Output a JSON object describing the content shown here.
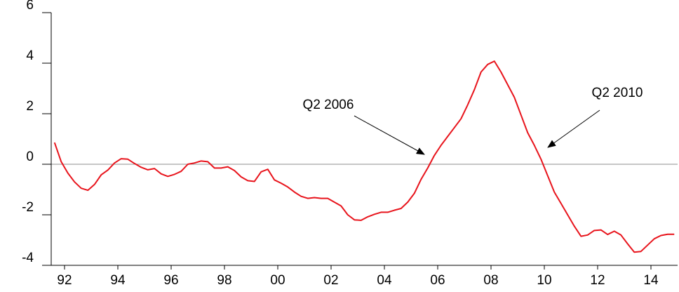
{
  "chart_data": {
    "type": "line",
    "annotations": [
      "Q2 2006",
      "Q2 2010"
    ],
    "x": [
      1992.125,
      1992.375,
      1992.625,
      1992.875,
      1993.125,
      1993.375,
      1993.625,
      1993.875,
      1994.125,
      1994.375,
      1994.625,
      1994.875,
      1995.125,
      1995.375,
      1995.625,
      1995.875,
      1996.125,
      1996.375,
      1996.625,
      1996.875,
      1997.125,
      1997.375,
      1997.625,
      1997.875,
      1998.125,
      1998.375,
      1998.625,
      1998.875,
      1999.125,
      1999.375,
      1999.625,
      1999.875,
      2000.125,
      2000.375,
      2000.625,
      2000.875,
      2001.125,
      2001.375,
      2001.625,
      2001.875,
      2002.125,
      2002.375,
      2002.625,
      2002.875,
      2003.125,
      2003.375,
      2003.625,
      2003.875,
      2004.125,
      2004.375,
      2004.625,
      2004.875,
      2005.125,
      2005.375,
      2005.625,
      2005.875,
      2006.125,
      2006.375,
      2006.625,
      2006.875,
      2007.125,
      2007.375,
      2007.625,
      2007.875,
      2008.125,
      2008.375,
      2008.625,
      2008.875,
      2009.125,
      2009.375,
      2009.625,
      2009.875,
      2010.125,
      2010.375,
      2010.625,
      2010.875,
      2011.125,
      2011.375,
      2011.625,
      2011.875,
      2012.125,
      2012.375,
      2012.625,
      2012.875,
      2013.125,
      2013.375,
      2013.625,
      2013.875,
      2014.125,
      2014.375,
      2014.625,
      2014.875,
      2015.125,
      2015.375
    ],
    "series": [
      {
        "color": "#e8141c",
        "values": [
          0.86,
          0.1,
          -0.35,
          -0.7,
          -0.95,
          -1.03,
          -0.8,
          -0.42,
          -0.23,
          0.05,
          0.22,
          0.2,
          0.03,
          -0.12,
          -0.22,
          -0.17,
          -0.38,
          -0.48,
          -0.4,
          -0.28,
          0.0,
          0.05,
          0.13,
          0.1,
          -0.15,
          -0.15,
          -0.1,
          -0.25,
          -0.5,
          -0.65,
          -0.68,
          -0.3,
          -0.2,
          -0.62,
          -0.75,
          -0.9,
          -1.1,
          -1.27,
          -1.35,
          -1.32,
          -1.35,
          -1.35,
          -1.5,
          -1.65,
          -2.0,
          -2.2,
          -2.22,
          -2.08,
          -1.98,
          -1.9,
          -1.9,
          -1.82,
          -1.75,
          -1.5,
          -1.15,
          -0.6,
          -0.15,
          0.35,
          0.75,
          1.1,
          1.45,
          1.8,
          2.35,
          2.95,
          3.65,
          3.95,
          4.08,
          3.65,
          3.15,
          2.65,
          1.95,
          1.25,
          0.75,
          0.2,
          -0.45,
          -1.1,
          -1.55,
          -2.0,
          -2.45,
          -2.85,
          -2.8,
          -2.62,
          -2.6,
          -2.78,
          -2.65,
          -2.8,
          -3.15,
          -3.48,
          -3.45,
          -3.2,
          -2.95,
          -2.82,
          -2.77,
          -2.77
        ]
      }
    ],
    "xlim": [
      1992,
      2015.5
    ],
    "xticks": [
      {
        "value": 1992.5,
        "label": "92"
      },
      {
        "value": 1994.5,
        "label": "94"
      },
      {
        "value": 1996.5,
        "label": "96"
      },
      {
        "value": 1998.5,
        "label": "98"
      },
      {
        "value": 2000.5,
        "label": "00"
      },
      {
        "value": 2002.5,
        "label": "02"
      },
      {
        "value": 2004.5,
        "label": "04"
      },
      {
        "value": 2006.5,
        "label": "06"
      },
      {
        "value": 2008.5,
        "label": "08"
      },
      {
        "value": 2010.5,
        "label": "10"
      },
      {
        "value": 2012.5,
        "label": "12"
      },
      {
        "value": 2014.5,
        "label": "14"
      }
    ],
    "ylim": [
      -4,
      6
    ],
    "yticks": [
      -4,
      -2,
      0,
      2,
      4,
      6
    ],
    "hline": 0
  }
}
